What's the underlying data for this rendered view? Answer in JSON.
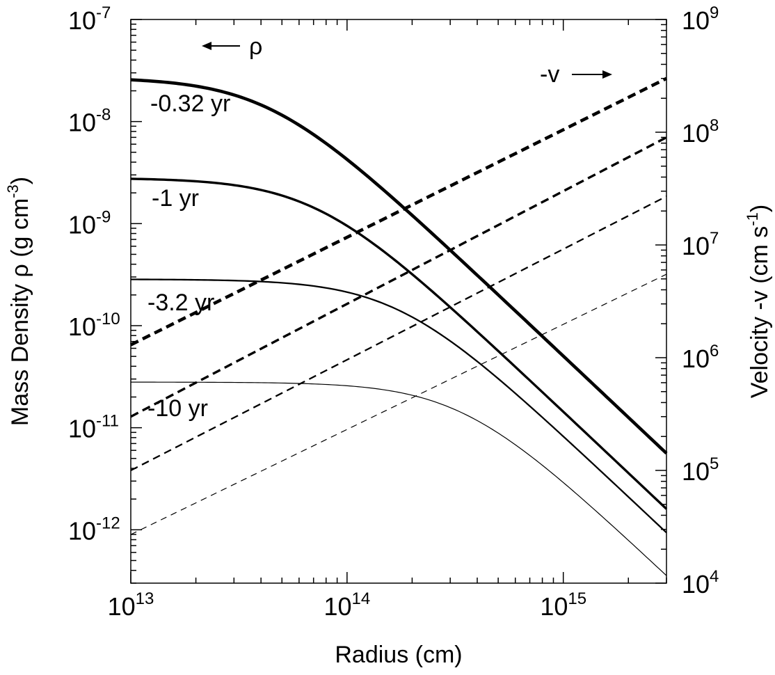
{
  "chart_data": {
    "type": "line",
    "x_axis": {
      "label": "Radius (cm)",
      "scale": "log",
      "range": [
        10000000000000.0,
        3000000000000000.0
      ],
      "tick_labels": [
        {
          "value": 10000000000000.0,
          "base": "10",
          "exp": "13"
        },
        {
          "value": 100000000000000.0,
          "base": "10",
          "exp": "14"
        },
        {
          "value": 1000000000000000.0,
          "base": "10",
          "exp": "15"
        }
      ]
    },
    "y_axis_left": {
      "label_text": "Mass Density  ρ  (g cm",
      "label_exp": "-3",
      "label_close": ")",
      "scale": "log",
      "range": [
        3e-13,
        1e-07
      ],
      "tick_labels": [
        {
          "value": 1e-07,
          "base": "10",
          "exp": "-7"
        },
        {
          "value": 1e-08,
          "base": "10",
          "exp": "-8"
        },
        {
          "value": 1e-09,
          "base": "10",
          "exp": "-9"
        },
        {
          "value": 1e-10,
          "base": "10",
          "exp": "-10"
        },
        {
          "value": 1e-11,
          "base": "10",
          "exp": "-11"
        },
        {
          "value": 1e-12,
          "base": "10",
          "exp": "-12"
        }
      ]
    },
    "y_axis_right": {
      "label_text": "Velocity   -v  (cm s",
      "label_exp": "-1",
      "label_close": ")",
      "scale": "log",
      "range": [
        10000.0,
        1000000000.0
      ],
      "tick_labels": [
        {
          "value": 1000000000.0,
          "base": "10",
          "exp": "9"
        },
        {
          "value": 100000000.0,
          "base": "10",
          "exp": "8"
        },
        {
          "value": 10000000.0,
          "base": "10",
          "exp": "7"
        },
        {
          "value": 1000000.0,
          "base": "10",
          "exp": "6"
        },
        {
          "value": 100000.0,
          "base": "10",
          "exp": "5"
        },
        {
          "value": 10000.0,
          "base": "10",
          "exp": "4"
        }
      ]
    },
    "grid": false,
    "annotations": {
      "rho_arrow_label": "ρ",
      "v_arrow_label": "-v"
    },
    "density_series": [
      {
        "name": "-0.32 yr",
        "rho_central": 2.7e-08,
        "r_core": 130000000000000.0,
        "rho_at_3e15": 5.6e-12,
        "line_weight": "heaviest"
      },
      {
        "name": "-1 yr",
        "rho_central": 2.8e-09,
        "r_core": 80000000000000.0,
        "rho_at_3e15": 1.6e-12,
        "line_weight": "heavy"
      },
      {
        "name": "-3.2 yr",
        "rho_central": 2.85e-10,
        "r_core": 55000000000000.0,
        "rho_at_3e15": 9.4e-13,
        "line_weight": "medium"
      },
      {
        "name": "-10 yr",
        "rho_central": 2.8e-11,
        "r_core": 29000000000000.0,
        "rho_at_3e15": 3.6e-13,
        "line_weight": "light"
      }
    ],
    "velocity_series": [
      {
        "name": "-0.32 yr",
        "x": [
          10000000000000.0,
          3000000000000000.0
        ],
        "y": [
          1300000.0,
          300000000.0
        ],
        "line_weight": "heaviest"
      },
      {
        "name": "-1 yr",
        "x": [
          10000000000000.0,
          3000000000000000.0
        ],
        "y": [
          300000.0,
          90000000.0
        ],
        "line_weight": "heavy"
      },
      {
        "name": "-3.2 yr",
        "x": [
          10000000000000.0,
          3000000000000000.0
        ],
        "y": [
          100000.0,
          27000000.0
        ],
        "line_weight": "medium"
      },
      {
        "name": "-10 yr",
        "x": [
          10000000000000.0,
          3000000000000000.0
        ],
        "y": [
          27000.0,
          5500000.0
        ],
        "line_weight": "light"
      }
    ]
  }
}
